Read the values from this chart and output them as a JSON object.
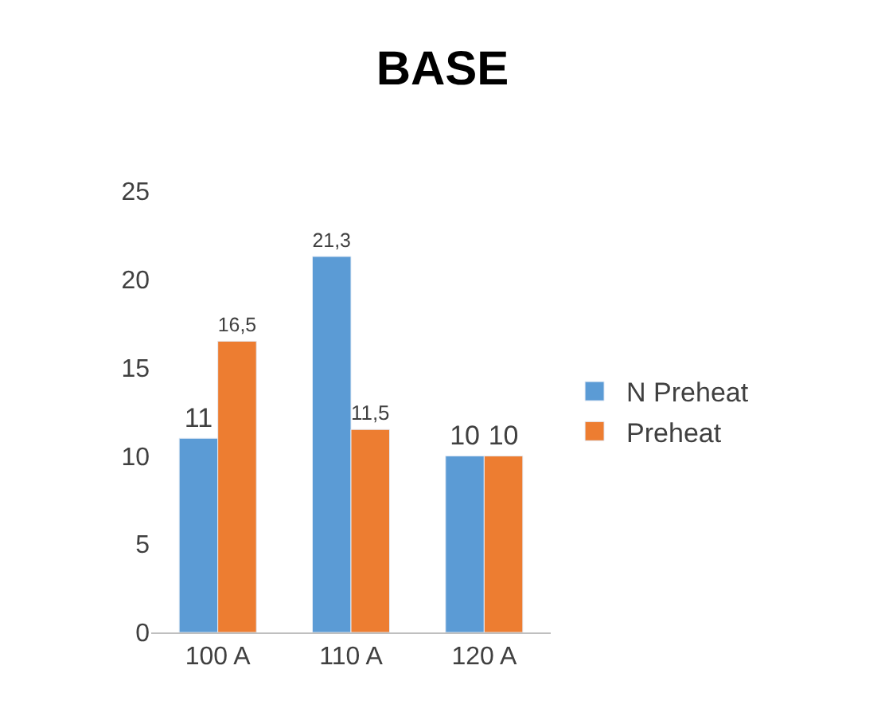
{
  "chart_data": {
    "type": "bar",
    "title": "BASE",
    "categories": [
      "100 A",
      "110 A",
      "120 A"
    ],
    "series": [
      {
        "name": "N Preheat",
        "color": "#5b9bd5",
        "values": [
          11,
          21.3,
          10
        ],
        "value_labels": [
          "11",
          "21,3",
          "10"
        ]
      },
      {
        "name": "Preheat",
        "color": "#ed7d31",
        "values": [
          16.5,
          11.5,
          10
        ],
        "value_labels": [
          "16,5",
          "11,5",
          "10"
        ]
      }
    ],
    "ylim": [
      0,
      25
    ],
    "yticks": [
      0,
      5,
      10,
      15,
      20,
      25
    ],
    "grid": false,
    "legend": "right"
  }
}
